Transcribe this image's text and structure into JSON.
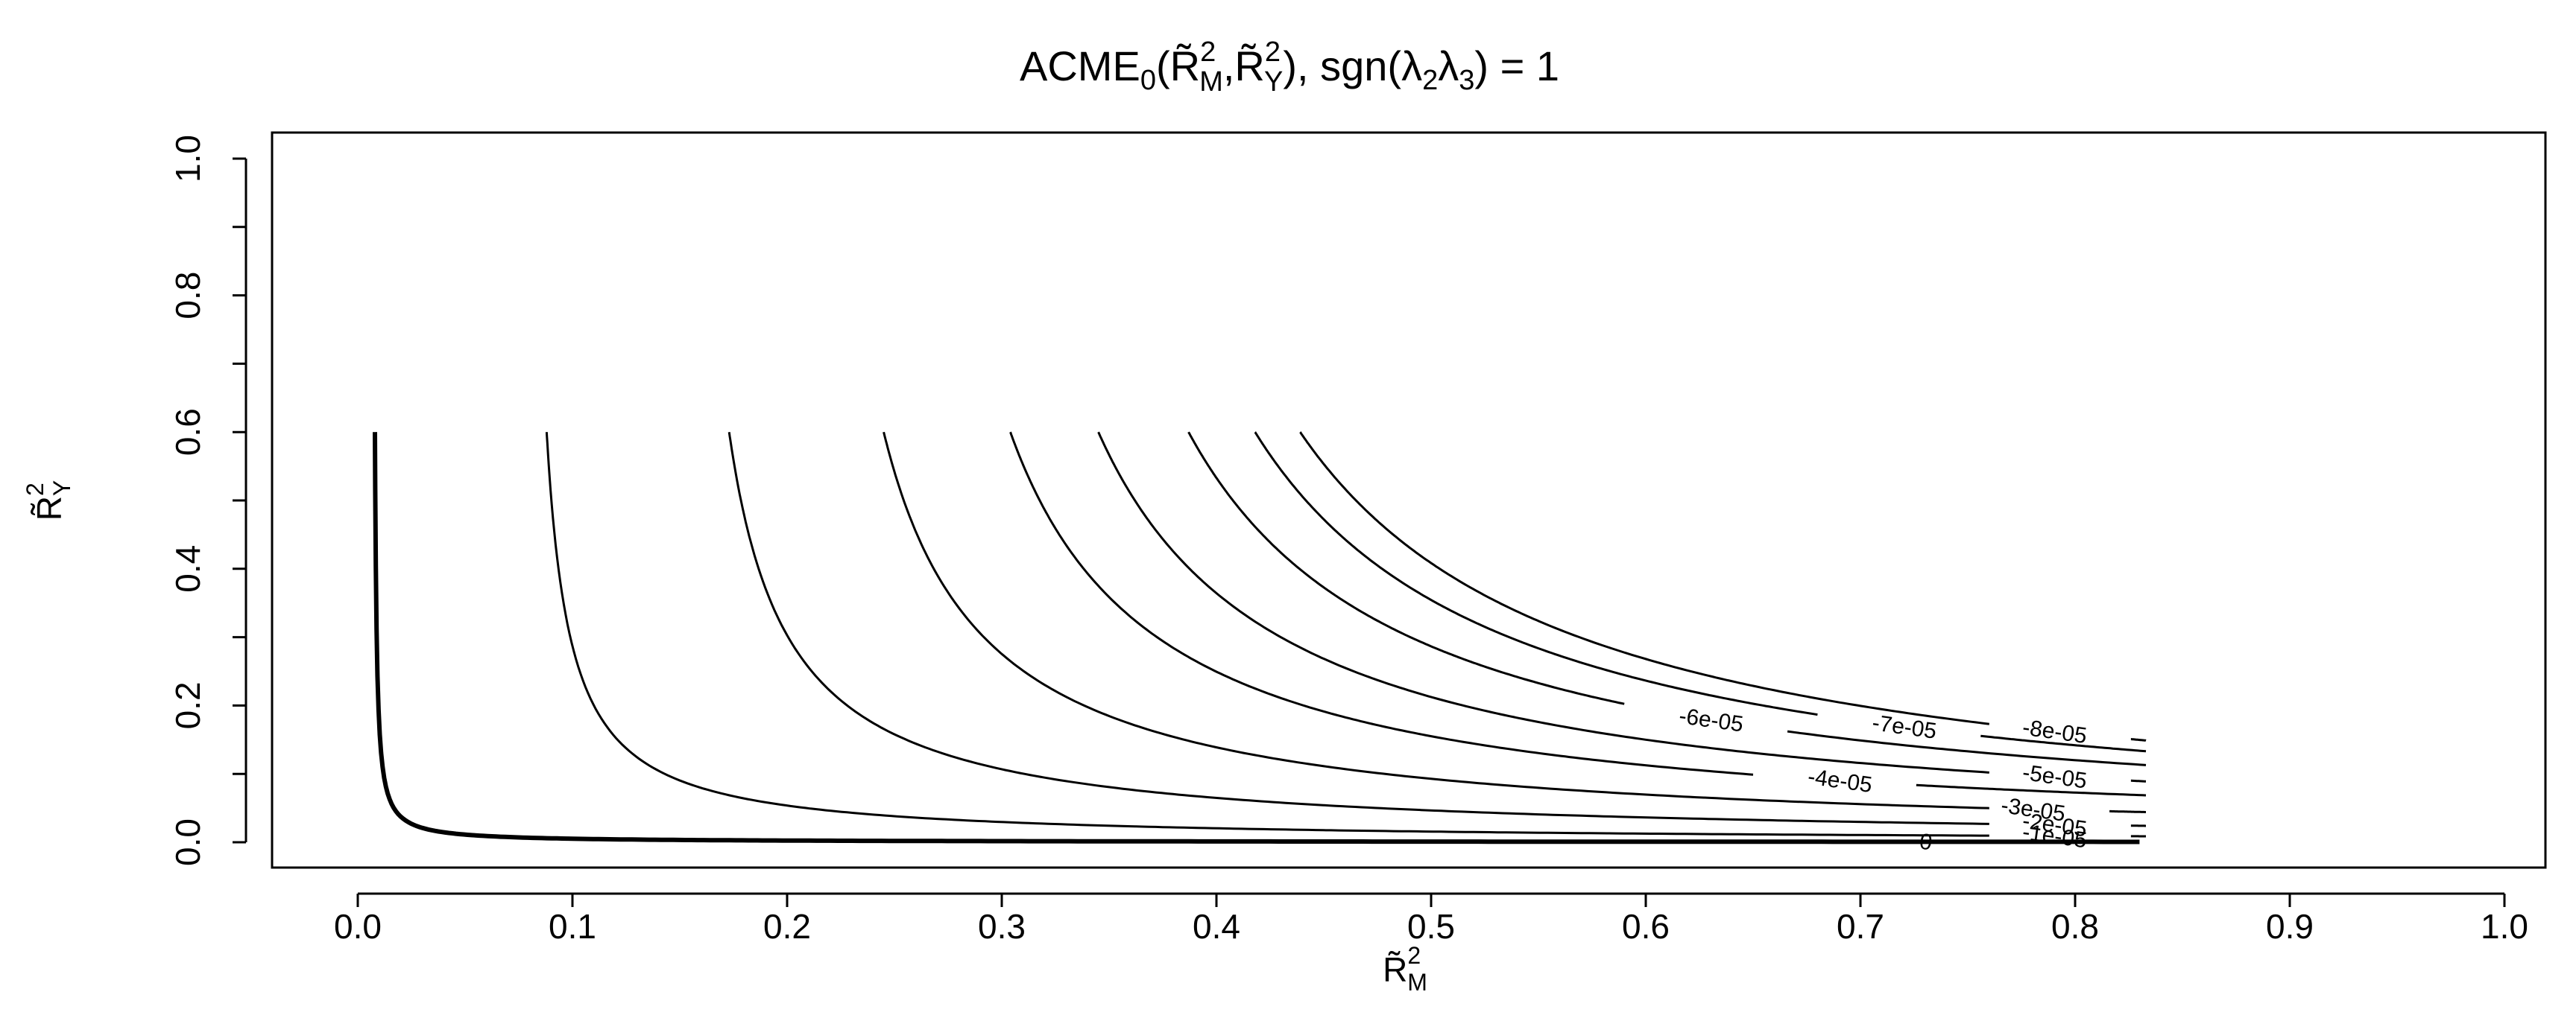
{
  "chart_data": {
    "type": "line",
    "title": "ACME₀(R̃²M,R̃²Y), sgn(λ₂λ₃) = 1",
    "title_parts": {
      "prefix": "ACME",
      "sub0": "0",
      "open": "(",
      "r1": "R̃",
      "sup1": "2",
      "sub1": "M",
      "comma": ",",
      "r2": "R̃",
      "sup2": "2",
      "sub2": "Y",
      "close": "), sgn(",
      "lam1": "λ",
      "lsub1": "2",
      "lam2": "λ",
      "lsub2": "3",
      "tail": ") = 1"
    },
    "xlabel": {
      "base": "R̃",
      "sup": "2",
      "sub": "M"
    },
    "ylabel": {
      "base": "R̃",
      "sup": "2",
      "sub": "Y"
    },
    "xlim": [
      0,
      1
    ],
    "ylim": [
      0,
      1
    ],
    "x_ticks": [
      "0.0",
      "0.1",
      "0.2",
      "0.3",
      "0.4",
      "0.5",
      "0.6",
      "0.7",
      "0.8",
      "0.9",
      "1.0"
    ],
    "y_ticks": [
      "0.0",
      "0.2",
      "0.4",
      "0.6",
      "0.8",
      "1.0"
    ],
    "y_minor_ticks": [
      0.1,
      0.3,
      0.5,
      0.7,
      0.9
    ],
    "grid": false,
    "line_color": "#000000",
    "series": [
      {
        "name": "0",
        "x0": 0.008,
        "c": 0.00048,
        "xend": 0.83,
        "bold": true,
        "label_x": 0.73
      },
      {
        "name": "-1e-05",
        "x0": 0.088,
        "c": 0.0066,
        "xend": 0.76,
        "label_x": 0.79
      },
      {
        "name": "-2e-05",
        "x0": 0.173,
        "c": 0.0165,
        "xend": 0.76,
        "label_x": 0.79
      },
      {
        "name": "-3e-05",
        "x0": 0.245,
        "c": 0.028,
        "xend": 0.76,
        "label_x": 0.78
      },
      {
        "name": "-4e-05",
        "x0": 0.304,
        "c": 0.041,
        "xend": 0.65,
        "label_x": 0.69
      },
      {
        "name": "-5e-05",
        "x0": 0.345,
        "c": 0.051,
        "xend": 0.76,
        "label_x": 0.79
      },
      {
        "name": "-6e-05",
        "x0": 0.387,
        "c": 0.062,
        "xend": 0.59,
        "label_x": 0.63
      },
      {
        "name": "-7e-05",
        "x0": 0.418,
        "c": 0.071,
        "xend": 0.68,
        "label_x": 0.72
      },
      {
        "name": "-8e-05",
        "x0": 0.439,
        "c": 0.078,
        "xend": 0.76,
        "label_x": 0.79
      }
    ]
  }
}
